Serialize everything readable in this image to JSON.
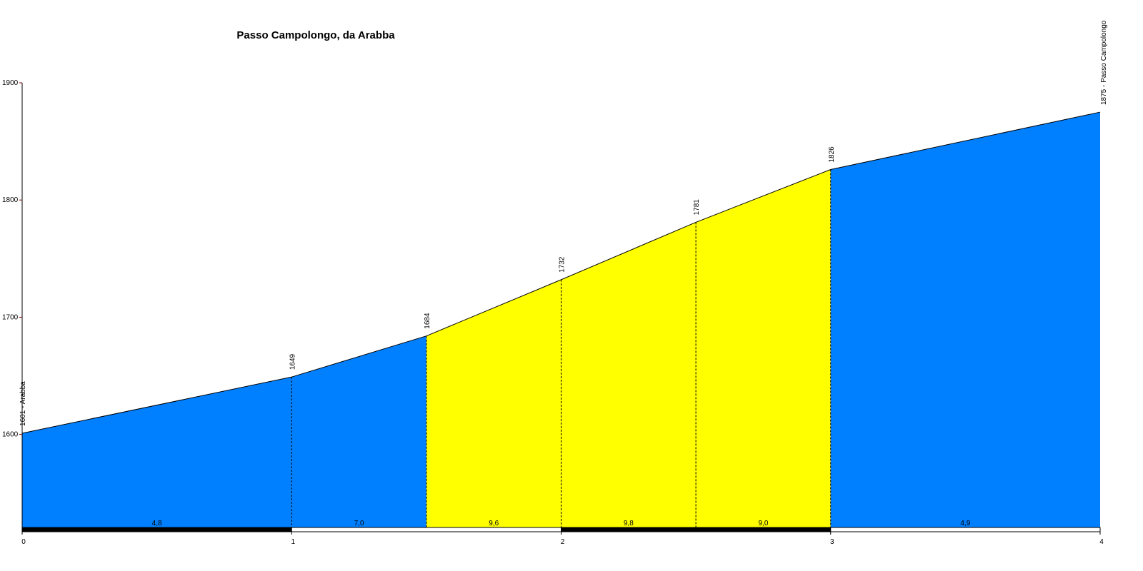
{
  "chart_data": {
    "type": "area",
    "title": "Passo Campolongo, da Arabba",
    "x": [
      0,
      1,
      1.5,
      2,
      2.5,
      3,
      4
    ],
    "values": [
      1601,
      1649,
      1684,
      1732,
      1781,
      1826,
      1875
    ],
    "value_labels": [
      "1601 - Arabba",
      "1649",
      "1684",
      "1732",
      "1781",
      "1826",
      "1875 - Passo Campolongo"
    ],
    "segments": {
      "gradients": [
        4.8,
        7.0,
        9.6,
        9.8,
        9.0,
        4.9
      ],
      "gradient_labels": [
        "4,8",
        "7,0",
        "9,6",
        "9,8",
        "9,0",
        "4,9"
      ],
      "colors": [
        "#0080ff",
        "#0080ff",
        "#ffff00",
        "#ffff00",
        "#ffff00",
        "#0080ff"
      ]
    },
    "xlim": [
      0,
      4
    ],
    "xticks": [
      0,
      1,
      2,
      3,
      4
    ],
    "ylim": [
      1520,
      1900
    ],
    "yticks": [
      1600,
      1700,
      1800,
      1900
    ]
  }
}
